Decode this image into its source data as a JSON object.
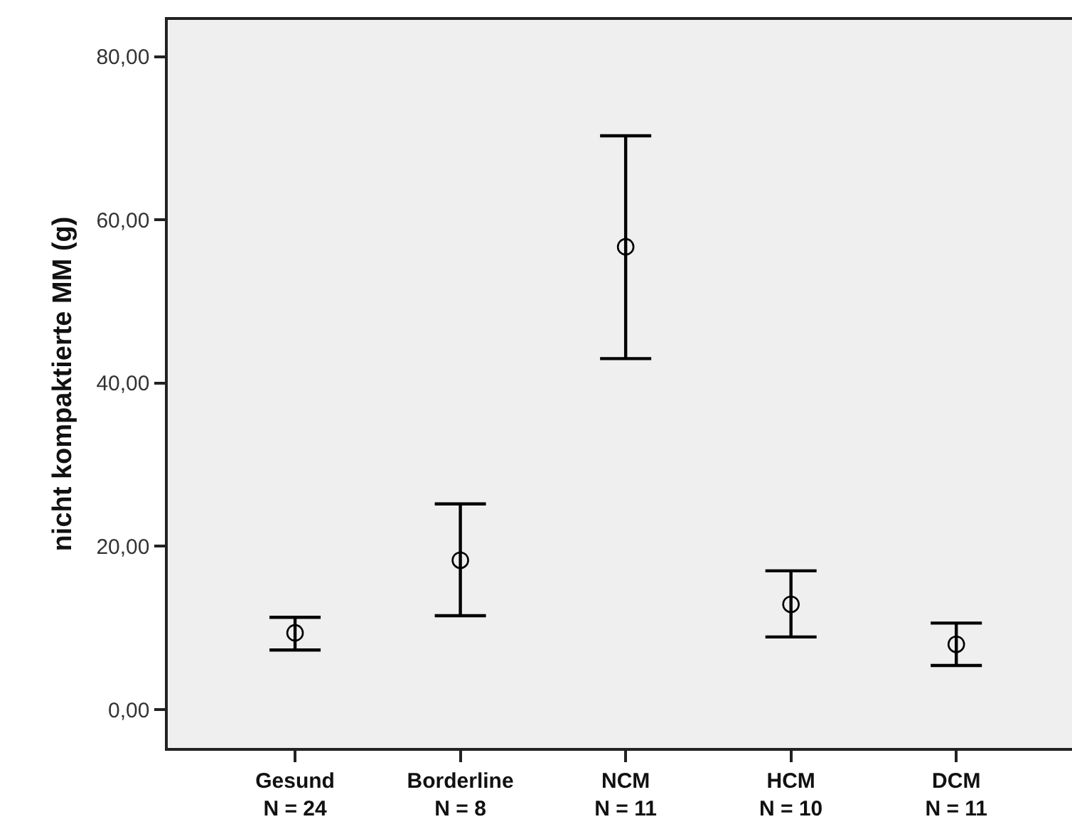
{
  "chart_data": {
    "type": "scatter",
    "ylabel": "nicht kompaktierte MM (g)",
    "categories": [
      "Gesund\nN = 24",
      "Borderline\nN = 8",
      "NCM\nN = 11",
      "HCM\nN = 10",
      "DCM\nN = 11"
    ],
    "values": [
      9.4,
      18.3,
      56.7,
      12.9,
      8.0
    ],
    "errors": [
      [
        7.3,
        11.3
      ],
      [
        11.5,
        25.2
      ],
      [
        43.0,
        70.3
      ],
      [
        8.9,
        17.0
      ],
      [
        5.4,
        10.6
      ]
    ],
    "color": "#000000",
    "marker": "circle",
    "ylim": [
      -4.7,
      84.5
    ],
    "yticks": [
      {
        "value": 0,
        "label": "0,00"
      },
      {
        "value": 20,
        "label": "20,00"
      },
      {
        "value": 40,
        "label": "40,00"
      },
      {
        "value": 60,
        "label": "60,00"
      },
      {
        "value": 80,
        "label": "80,00"
      }
    ]
  }
}
